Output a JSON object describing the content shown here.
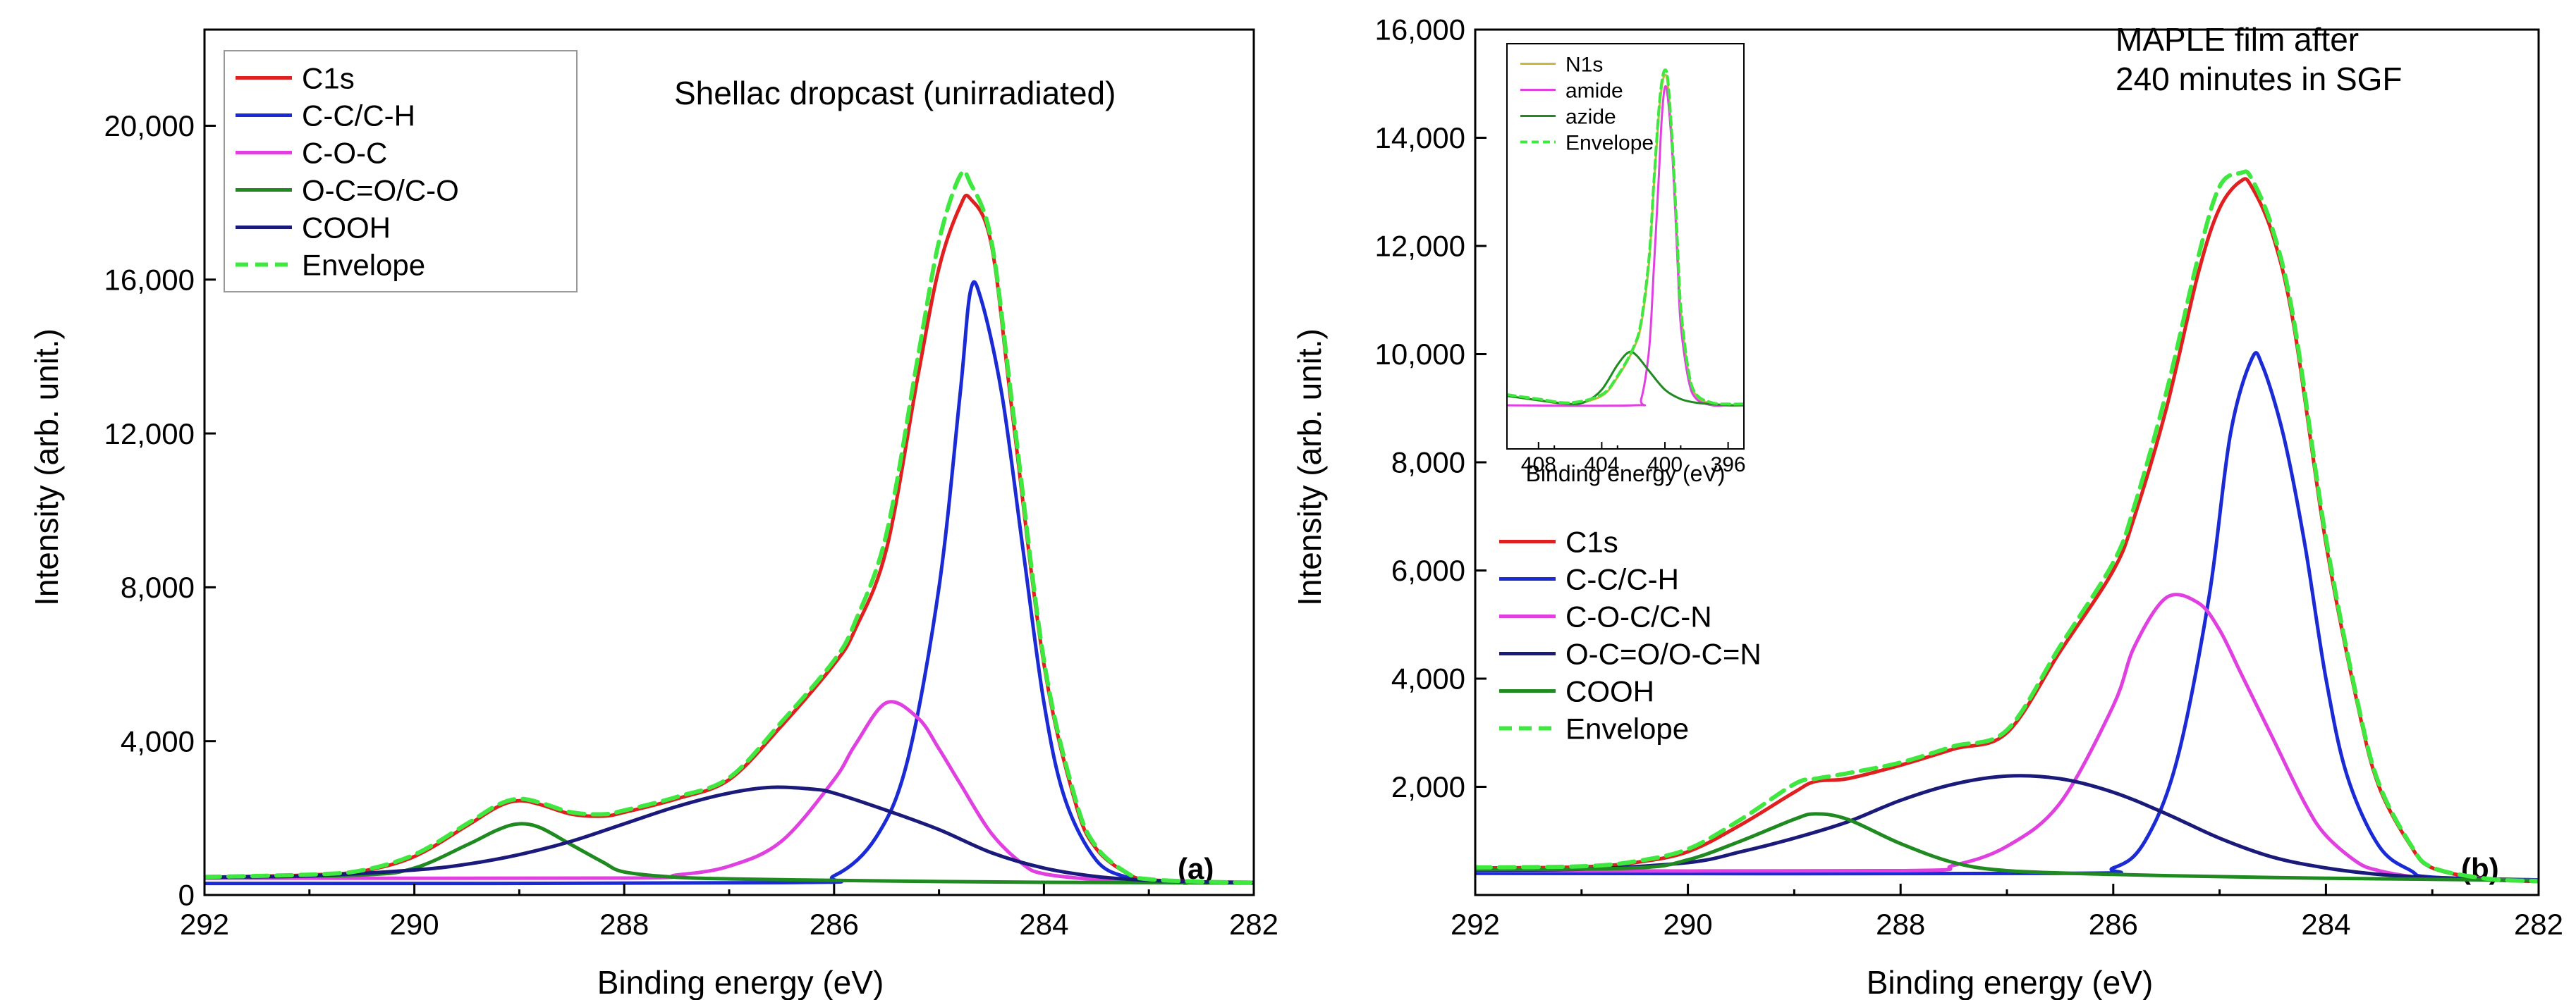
{
  "chart_data": [
    {
      "id": "a",
      "type": "line",
      "title": "Shellac dropcast (unirradiated)",
      "panel_label": "(a)",
      "xlabel": "Binding energy (eV)",
      "ylabel": "Intensity (arb. unit.)",
      "xlim": [
        292,
        282
      ],
      "ylim": [
        0,
        22500
      ],
      "xticks": [
        292,
        290,
        288,
        286,
        284,
        282
      ],
      "xtick_labels": [
        "292",
        "290",
        "288",
        "286",
        "284",
        "282"
      ],
      "yticks": [
        0,
        4000,
        8000,
        12000,
        16000,
        20000
      ],
      "ytick_labels": [
        "0",
        "4,000",
        "8,000",
        "12,000",
        "16,000",
        "20,000"
      ],
      "x_reversed": true,
      "grid": false,
      "legend": "top-left",
      "background": 450,
      "series": [
        {
          "name": "C1s",
          "color": "#e02020",
          "dash": false,
          "x": [
            292,
            291,
            290.5,
            290,
            289.5,
            289.2,
            289,
            288.8,
            288.5,
            288.2,
            288,
            287.5,
            287,
            286.5,
            286,
            285.8,
            285.5,
            285.2,
            285,
            284.8,
            284.7,
            284.5,
            284.3,
            284,
            283.7,
            283.5,
            283.2,
            283,
            282.5,
            282
          ],
          "y": [
            460,
            520,
            620,
            1000,
            1800,
            2300,
            2450,
            2350,
            2100,
            2050,
            2150,
            2500,
            3000,
            4400,
            6000,
            6900,
            9000,
            13500,
            16300,
            17900,
            18100,
            16900,
            12500,
            6000,
            2400,
            1200,
            550,
            400,
            340,
            320
          ]
        },
        {
          "name": "C-C/C-H",
          "color": "#1a2bd6",
          "dash": false,
          "x": [
            292,
            286.5,
            286,
            285.6,
            285.3,
            285,
            284.8,
            284.7,
            284.6,
            284.4,
            284.2,
            284,
            283.8,
            283.5,
            283.2,
            283,
            282
          ],
          "y": [
            300,
            320,
            500,
            1500,
            3500,
            8000,
            13000,
            15700,
            15500,
            13000,
            9000,
            5000,
            2500,
            900,
            450,
            360,
            330
          ]
        },
        {
          "name": "C-O-C",
          "color": "#e040e0",
          "dash": false,
          "x": [
            292,
            288,
            287.5,
            287,
            286.5,
            286,
            285.8,
            285.5,
            285.2,
            285,
            284.8,
            284.5,
            284.2,
            284,
            283.5,
            283,
            282
          ],
          "y": [
            440,
            440,
            520,
            750,
            1400,
            3000,
            3900,
            5000,
            4600,
            3800,
            2900,
            1600,
            800,
            550,
            400,
            340,
            330
          ]
        },
        {
          "name": "O-C=O/C-O",
          "color": "#1f8a1f",
          "dash": false,
          "x": [
            292,
            290.5,
            290,
            289.5,
            289.2,
            289,
            288.8,
            288.5,
            288.2,
            288,
            287.5,
            287,
            286,
            285,
            284,
            283,
            282
          ],
          "y": [
            460,
            520,
            700,
            1300,
            1700,
            1850,
            1750,
            1300,
            850,
            600,
            460,
            420,
            380,
            350,
            330,
            320,
            310
          ]
        },
        {
          "name": "COOH",
          "color": "#1a1a7a",
          "dash": false,
          "x": [
            292,
            291,
            290,
            289.5,
            289,
            288.5,
            288,
            287.5,
            287,
            286.6,
            286.2,
            286,
            285.5,
            285,
            284.5,
            284,
            283.5,
            283,
            282.5,
            282
          ],
          "y": [
            460,
            500,
            650,
            800,
            1050,
            1400,
            1850,
            2300,
            2650,
            2800,
            2750,
            2650,
            2200,
            1700,
            1100,
            700,
            480,
            380,
            340,
            320
          ]
        },
        {
          "name": "Envelope",
          "color": "#3ee83e",
          "dash": true,
          "x": [
            292,
            291,
            290.5,
            290,
            289.5,
            289.2,
            289,
            288.8,
            288.5,
            288.2,
            288,
            287.5,
            287,
            286.5,
            286,
            285.8,
            285.5,
            285.2,
            285,
            284.8,
            284.7,
            284.5,
            284.3,
            284,
            283.7,
            283.5,
            283.2,
            283,
            282.5,
            282
          ],
          "y": [
            470,
            530,
            640,
            1050,
            1850,
            2350,
            2500,
            2400,
            2150,
            2100,
            2200,
            2550,
            3050,
            4500,
            6100,
            7100,
            9400,
            14000,
            17000,
            18700,
            18500,
            17000,
            12700,
            6100,
            2500,
            1250,
            560,
            410,
            345,
            325
          ]
        }
      ]
    },
    {
      "id": "b",
      "type": "line",
      "title": "MAPLE film after 240 minutes in SGF",
      "title_lines": [
        "MAPLE film after",
        "240 minutes in SGF"
      ],
      "panel_label": "(b)",
      "xlabel": "Binding energy (eV)",
      "ylabel": "Intensity (arb. unit.)",
      "xlim": [
        292,
        282
      ],
      "ylim": [
        0,
        16000
      ],
      "xticks": [
        292,
        290,
        288,
        286,
        284,
        282
      ],
      "xtick_labels": [
        "292",
        "290",
        "288",
        "286",
        "284",
        "282"
      ],
      "yticks": [
        2000,
        4000,
        6000,
        8000,
        10000,
        12000,
        14000,
        16000
      ],
      "ytick_labels": [
        "2,000",
        "4,000",
        "6,000",
        "8,000",
        "10,000",
        "12,000",
        "14,000",
        "16,000"
      ],
      "x_reversed": true,
      "grid": false,
      "legend": "middle-left",
      "series": [
        {
          "name": "C1s",
          "color": "#e02020",
          "dash": false,
          "x": [
            292,
            291,
            290.5,
            290,
            289.5,
            289,
            288.8,
            288.5,
            288,
            287.5,
            287,
            286.5,
            286,
            285.8,
            285.5,
            285.2,
            285,
            284.8,
            284.7,
            284.5,
            284.3,
            284,
            283.7,
            283.5,
            283.2,
            283,
            282.5,
            282
          ],
          "y": [
            500,
            520,
            600,
            800,
            1300,
            1900,
            2100,
            2150,
            2400,
            2700,
            3000,
            4500,
            6000,
            7000,
            9000,
            11500,
            12700,
            13200,
            13100,
            12200,
            10500,
            6500,
            3500,
            2000,
            900,
            500,
            300,
            250
          ]
        },
        {
          "name": "C-C/C-H",
          "color": "#1a2bd6",
          "dash": false,
          "x": [
            292,
            286.5,
            286,
            285.7,
            285.4,
            285.1,
            284.9,
            284.7,
            284.6,
            284.4,
            284.2,
            284,
            283.8,
            283.5,
            283.2,
            283,
            282
          ],
          "y": [
            400,
            400,
            500,
            1000,
            2500,
            5500,
            8500,
            9900,
            9800,
            8500,
            6500,
            4000,
            2200,
            900,
            450,
            330,
            280
          ]
        },
        {
          "name": "C-O-C/C-N",
          "color": "#e040e0",
          "dash": false,
          "x": [
            292,
            288,
            287.5,
            287,
            286.5,
            286,
            285.8,
            285.5,
            285.2,
            285,
            284.8,
            284.5,
            284.2,
            284,
            283.7,
            283.5,
            283.2,
            283,
            282
          ],
          "y": [
            450,
            450,
            550,
            900,
            1700,
            3500,
            4600,
            5500,
            5400,
            4900,
            4100,
            2900,
            1700,
            1100,
            600,
            450,
            340,
            300,
            270
          ]
        },
        {
          "name": "O-C=O/O-C=N",
          "color": "#1a1a7a",
          "dash": false,
          "x": [
            292,
            291,
            290,
            289.5,
            289,
            288.5,
            288,
            287.5,
            287,
            286.5,
            286,
            285.5,
            285,
            284.5,
            284,
            283.5,
            283,
            282.5,
            282
          ],
          "y": [
            460,
            480,
            600,
            800,
            1050,
            1350,
            1750,
            2050,
            2200,
            2150,
            1900,
            1500,
            1050,
            700,
            500,
            380,
            320,
            280,
            260
          ]
        },
        {
          "name": "COOH",
          "color": "#1f8a1f",
          "dash": false,
          "x": [
            292,
            290.5,
            290,
            289.5,
            289,
            288.8,
            288.5,
            288,
            287.5,
            287,
            286,
            285,
            284,
            283,
            282
          ],
          "y": [
            470,
            500,
            650,
            1000,
            1400,
            1500,
            1400,
            950,
            600,
            450,
            380,
            340,
            310,
            290,
            270
          ]
        },
        {
          "name": "Envelope",
          "color": "#3ee83e",
          "dash": true,
          "x": [
            292,
            291,
            290.5,
            290,
            289.5,
            289,
            288.8,
            288.5,
            288,
            287.5,
            287,
            286.5,
            286,
            285.8,
            285.5,
            285.2,
            285,
            284.8,
            284.7,
            284.5,
            284.3,
            284,
            283.7,
            283.5,
            283.2,
            283,
            282.5,
            282
          ],
          "y": [
            510,
            530,
            620,
            850,
            1400,
            2050,
            2150,
            2250,
            2450,
            2750,
            3050,
            4600,
            6150,
            7200,
            9300,
            11800,
            13100,
            13350,
            13250,
            12300,
            10600,
            6600,
            3550,
            2050,
            920,
            510,
            305,
            255
          ]
        }
      ]
    },
    {
      "id": "b-inset",
      "type": "line",
      "xlabel": "Binding energy (eV)",
      "ylabel": "",
      "xlim": [
        410,
        395
      ],
      "ylim": [
        9000,
        15500
      ],
      "xticks": [
        408,
        404,
        400,
        396
      ],
      "xtick_labels": [
        "408",
        "404",
        "400",
        "396"
      ],
      "x_reversed": true,
      "grid": false,
      "legend": "top-left",
      "series": [
        {
          "name": "N1s",
          "color": "#c9b83c",
          "dash": false,
          "x": [
            410,
            408,
            406,
            404,
            403,
            402,
            401.5,
            401,
            400.7,
            400.4,
            400.2,
            400,
            399.8,
            399.5,
            399.2,
            399,
            398.5,
            398,
            397,
            396,
            395
          ],
          "y": [
            9850,
            9780,
            9720,
            9850,
            10150,
            10600,
            11000,
            12000,
            13200,
            14300,
            14800,
            15000,
            14800,
            13700,
            12200,
            11200,
            10200,
            9850,
            9720,
            9700,
            9700
          ]
        },
        {
          "name": "amide",
          "color": "#e040e0",
          "dash": false,
          "x": [
            410,
            402,
            401.5,
            401,
            400.7,
            400.4,
            400.2,
            400,
            399.8,
            399.5,
            399.2,
            399,
            398.5,
            398,
            397,
            396,
            395
          ],
          "y": [
            9700,
            9700,
            9800,
            10600,
            11900,
            13300,
            14300,
            14800,
            14600,
            13600,
            12000,
            11000,
            10100,
            9800,
            9700,
            9700,
            9700
          ]
        },
        {
          "name": "azide",
          "color": "#1f8a1f",
          "dash": false,
          "x": [
            410,
            408,
            406,
            405,
            404,
            403,
            402.3,
            401.8,
            401,
            400,
            399,
            398,
            397,
            396,
            395
          ],
          "y": [
            9850,
            9780,
            9720,
            9760,
            9950,
            10350,
            10550,
            10500,
            10250,
            9950,
            9800,
            9740,
            9720,
            9700,
            9700
          ]
        },
        {
          "name": "Envelope",
          "color": "#3ee83e",
          "dash": true,
          "x": [
            410,
            408,
            406,
            404,
            403,
            402,
            401.5,
            401,
            400.7,
            400.4,
            400.2,
            400,
            399.8,
            399.5,
            399.2,
            399,
            398.5,
            398,
            397,
            396,
            395
          ],
          "y": [
            9870,
            9800,
            9740,
            9870,
            10170,
            10620,
            11050,
            12080,
            13280,
            14380,
            14880,
            15080,
            14880,
            13780,
            12280,
            11280,
            10240,
            9870,
            9740,
            9720,
            9720
          ]
        }
      ]
    }
  ]
}
